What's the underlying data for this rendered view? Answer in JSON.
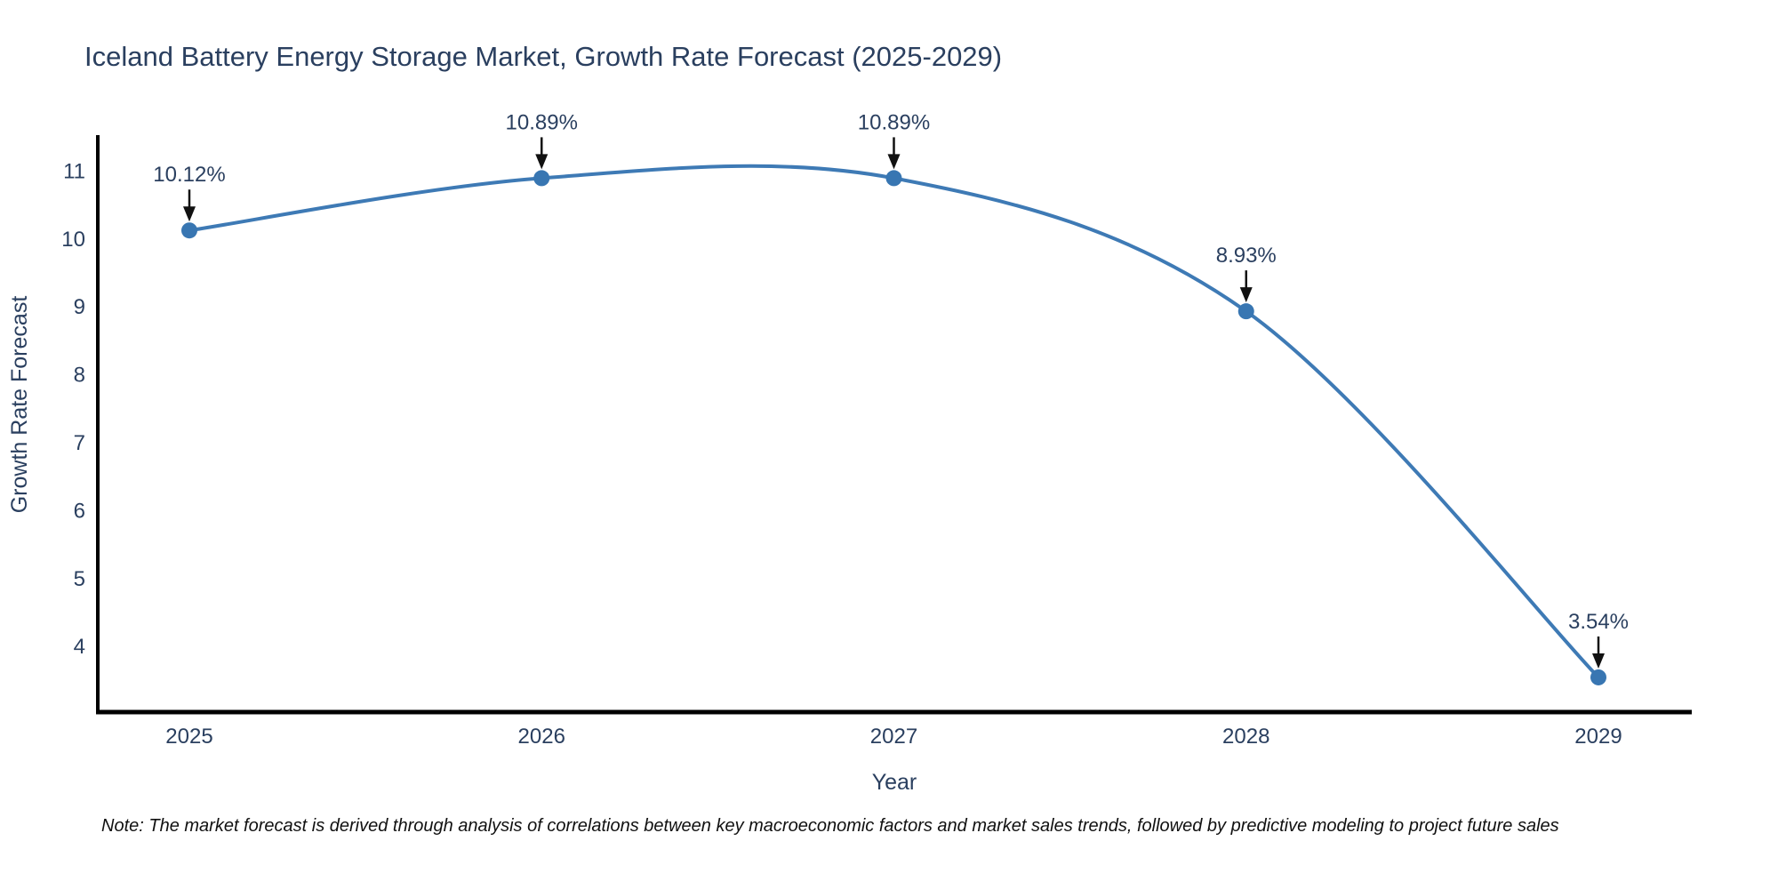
{
  "title": "Iceland Battery Energy Storage Market, Growth Rate Forecast (2025-2029)",
  "note": "Note: The market forecast is derived through analysis of correlations between key macroeconomic factors and market sales trends, followed by predictive modeling to project future sales",
  "chart_data": {
    "type": "line",
    "line_shape": "spline",
    "title": "Iceland Battery Energy Storage Market, Growth Rate Forecast (2025-2029)",
    "xlabel": "Year",
    "ylabel": "Growth Rate Forecast",
    "x": [
      2025,
      2026,
      2027,
      2028,
      2029
    ],
    "xticks": [
      "2025",
      "2026",
      "2027",
      "2028",
      "2029"
    ],
    "yticks": [
      4,
      5,
      6,
      7,
      8,
      9,
      10,
      11
    ],
    "ylim": [
      3.0,
      11.6
    ],
    "grid": false,
    "legend": "none",
    "series": [
      {
        "name": "Growth Rate Forecast",
        "values": [
          10.12,
          10.89,
          10.89,
          8.93,
          3.54
        ],
        "point_labels": [
          "10.12%",
          "10.89%",
          "10.89%",
          "8.93%",
          "3.54%"
        ]
      }
    ],
    "colors": {
      "line": "#3e7ab5",
      "marker": "#3876b2",
      "axis": "#000000",
      "text": "#2a3f5f",
      "annotation_text": "#2a3f5f",
      "arrow": "#111111",
      "background": "#ffffff"
    }
  }
}
